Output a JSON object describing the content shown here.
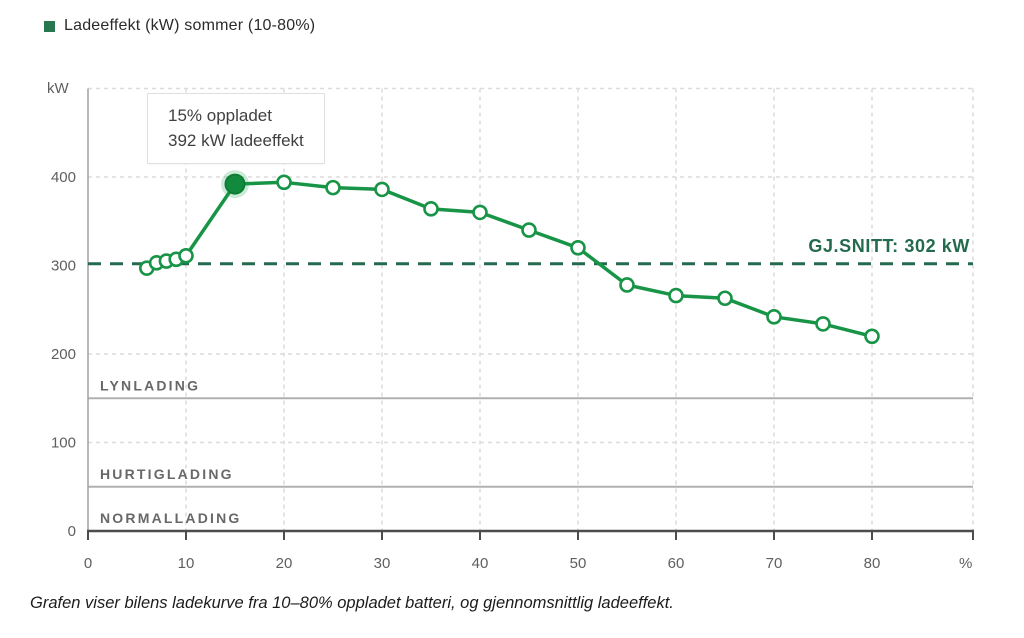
{
  "legend": {
    "label": "Ladeeffekt (kW) sommer (10-80%)",
    "swatch_color": "#27784e"
  },
  "tooltip": {
    "line1": "15% oppladet",
    "line2": "392 kW ladeeffekt"
  },
  "average": {
    "label": "GJ.SNITT: 302 kW",
    "value": 302
  },
  "caption": "Grafen viser bilens ladekurve fra 10–80% oppladet batteri, og gjennomsnittlig ladeeffekt.",
  "colors": {
    "series_green": "#189447",
    "highlight_fill": "#118a3e",
    "highlight_halo": "#18a04a",
    "average_green": "#246a4e",
    "grid": "#dcdcdc",
    "zone_line": "#b0b0b0",
    "axis": "#4d4d4d",
    "left_axis": "#a0a0a0"
  },
  "chart_data": {
    "type": "line",
    "title": "Ladeeffekt (kW) sommer (10-80%)",
    "xlabel": "%",
    "ylabel": "kW",
    "xlim": [
      0,
      90
    ],
    "ylim": [
      0,
      500
    ],
    "x_ticks": [
      0,
      10,
      20,
      30,
      40,
      50,
      60,
      70,
      80
    ],
    "y_ticks": [
      0,
      100,
      200,
      300,
      400
    ],
    "grid": true,
    "legend_position": "top-left",
    "series": [
      {
        "name": "Ladeeffekt (kW) sommer (10-80%)",
        "x": [
          6,
          7,
          8,
          9,
          10,
          15,
          20,
          25,
          30,
          35,
          40,
          45,
          50,
          55,
          60,
          65,
          70,
          75,
          80
        ],
        "y": [
          297,
          303,
          305,
          307,
          311,
          392,
          394,
          388,
          386,
          364,
          360,
          340,
          320,
          278,
          266,
          263,
          242,
          234,
          220
        ]
      }
    ],
    "highlight_point": {
      "x": 15,
      "y": 392,
      "annotation": "15% oppladet, 392 kW ladeeffekt"
    },
    "average_line": {
      "value": 302,
      "label": "GJ.SNITT: 302 kW",
      "style": "dashed"
    },
    "zones": [
      {
        "label": "LYNLADING",
        "value": 150
      },
      {
        "label": "HURTIGLADING",
        "value": 50
      },
      {
        "label": "NORMALLADING",
        "value": 0
      }
    ]
  }
}
